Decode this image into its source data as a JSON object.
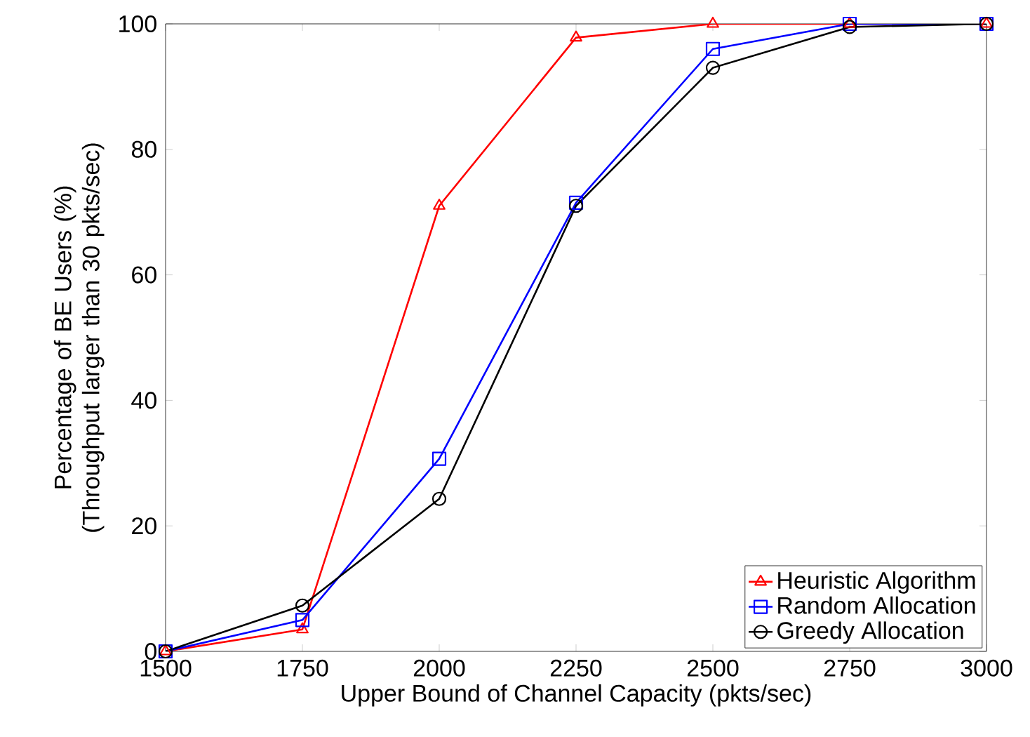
{
  "chart_data": {
    "type": "line",
    "xlabel": "Upper Bound of Channel Capacity (pkts/sec)",
    "ylabel": "Percentage of BE Users (%) (Throughput larger than 30 pkts/sec)",
    "x": [
      1500,
      1750,
      2000,
      2250,
      2500,
      2750,
      3000
    ],
    "series": [
      {
        "name": "Heuristic Algorithm",
        "color": "#ff0000",
        "marker": "triangle",
        "values": [
          0,
          3.5,
          71,
          97.8,
          100,
          100,
          100
        ]
      },
      {
        "name": "Random Allocation",
        "color": "#0000ff",
        "marker": "square",
        "values": [
          0,
          5,
          30.7,
          71.5,
          96,
          100,
          100
        ]
      },
      {
        "name": "Greedy Allocation",
        "color": "#000000",
        "marker": "circle",
        "values": [
          0,
          7.3,
          24.3,
          71,
          93,
          99.5,
          100
        ]
      }
    ],
    "xlim": [
      1500,
      3000
    ],
    "ylim": [
      0,
      100
    ],
    "xticks": [
      1500,
      1750,
      2000,
      2250,
      2500,
      2750,
      3000
    ],
    "yticks": [
      0,
      20,
      40,
      60,
      80,
      100
    ],
    "grid": false,
    "legend": "bottom right",
    "line_style": "solid"
  }
}
